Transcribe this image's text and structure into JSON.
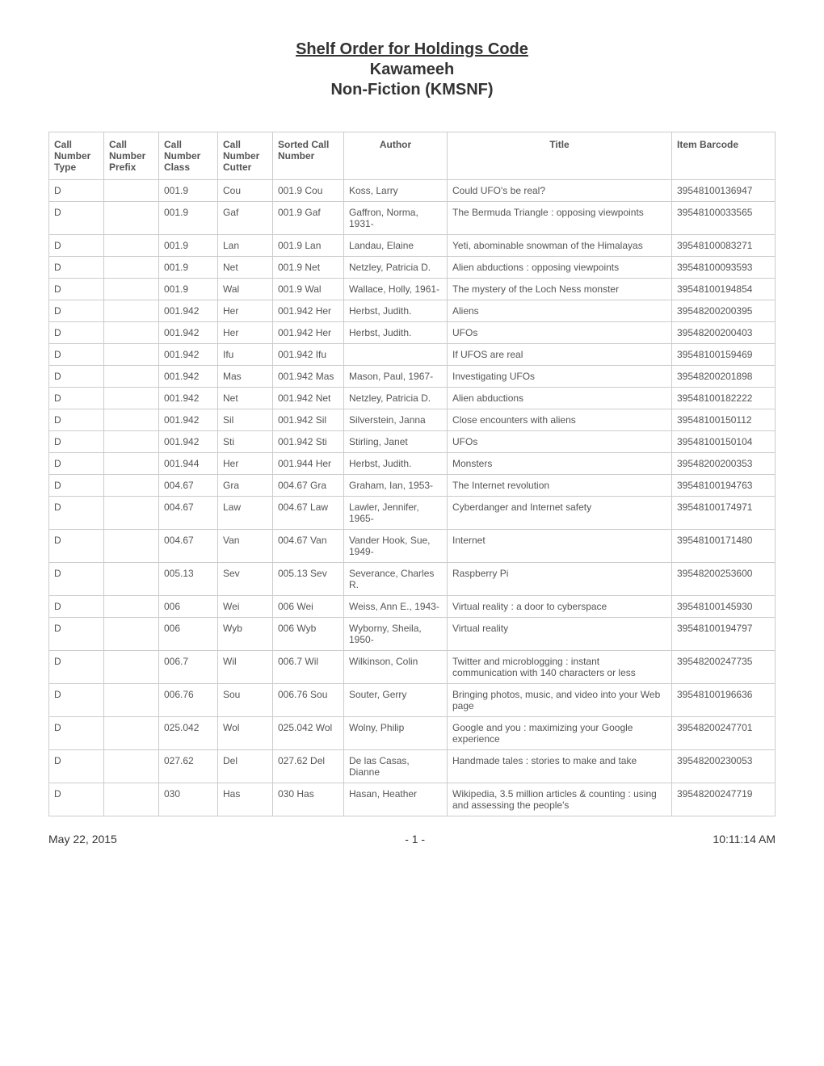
{
  "header": {
    "title": "Shelf Order for Holdings Code",
    "sub1": "Kawameeh",
    "sub2": "Non-Fiction (KMSNF)"
  },
  "columns": [
    "Call Number Type",
    "Call Number Prefix",
    "Call Number Class",
    "Call Number Cutter",
    "Sorted Call Number",
    "Author",
    "Title",
    "Item Barcode"
  ],
  "rows": [
    {
      "type": "D",
      "prefix": "",
      "class": "001.9",
      "cutter": "Cou",
      "sorted": "001.9 Cou",
      "author": "Koss, Larry",
      "title": "Could UFO's be real?",
      "barcode": "39548100136947"
    },
    {
      "type": "D",
      "prefix": "",
      "class": "001.9",
      "cutter": "Gaf",
      "sorted": "001.9 Gaf",
      "author": "Gaffron, Norma, 1931-",
      "title": "The Bermuda Triangle : opposing viewpoints",
      "barcode": "39548100033565"
    },
    {
      "type": "D",
      "prefix": "",
      "class": "001.9",
      "cutter": "Lan",
      "sorted": "001.9 Lan",
      "author": "Landau, Elaine",
      "title": "Yeti, abominable snowman of the Himalayas",
      "barcode": "39548100083271"
    },
    {
      "type": "D",
      "prefix": "",
      "class": "001.9",
      "cutter": "Net",
      "sorted": "001.9 Net",
      "author": "Netzley, Patricia D.",
      "title": "Alien abductions : opposing viewpoints",
      "barcode": "39548100093593"
    },
    {
      "type": "D",
      "prefix": "",
      "class": "001.9",
      "cutter": "Wal",
      "sorted": "001.9 Wal",
      "author": "Wallace, Holly, 1961-",
      "title": "The mystery of the Loch Ness monster",
      "barcode": "39548100194854"
    },
    {
      "type": "D",
      "prefix": "",
      "class": "001.942",
      "cutter": "Her",
      "sorted": "001.942 Her",
      "author": "Herbst, Judith.",
      "title": "Aliens",
      "barcode": "39548200200395"
    },
    {
      "type": "D",
      "prefix": "",
      "class": "001.942",
      "cutter": "Her",
      "sorted": "001.942 Her",
      "author": "Herbst, Judith.",
      "title": "UFOs",
      "barcode": "39548200200403"
    },
    {
      "type": "D",
      "prefix": "",
      "class": "001.942",
      "cutter": "Ifu",
      "sorted": "001.942 Ifu",
      "author": "",
      "title": "If UFOS are real",
      "barcode": "39548100159469"
    },
    {
      "type": "D",
      "prefix": "",
      "class": "001.942",
      "cutter": "Mas",
      "sorted": "001.942 Mas",
      "author": "Mason, Paul, 1967-",
      "title": "Investigating UFOs",
      "barcode": "39548200201898"
    },
    {
      "type": "D",
      "prefix": "",
      "class": "001.942",
      "cutter": "Net",
      "sorted": "001.942 Net",
      "author": "Netzley, Patricia D.",
      "title": "Alien abductions",
      "barcode": "39548100182222"
    },
    {
      "type": "D",
      "prefix": "",
      "class": "001.942",
      "cutter": "Sil",
      "sorted": "001.942 Sil",
      "author": "Silverstein, Janna",
      "title": "Close encounters with aliens",
      "barcode": "39548100150112"
    },
    {
      "type": "D",
      "prefix": "",
      "class": "001.942",
      "cutter": "Sti",
      "sorted": "001.942 Sti",
      "author": "Stirling, Janet",
      "title": "UFOs",
      "barcode": "39548100150104"
    },
    {
      "type": "D",
      "prefix": "",
      "class": "001.944",
      "cutter": "Her",
      "sorted": "001.944 Her",
      "author": "Herbst, Judith.",
      "title": "Monsters",
      "barcode": "39548200200353"
    },
    {
      "type": "D",
      "prefix": "",
      "class": "004.67",
      "cutter": "Gra",
      "sorted": "004.67 Gra",
      "author": "Graham, Ian, 1953-",
      "title": "The Internet revolution",
      "barcode": "39548100194763"
    },
    {
      "type": "D",
      "prefix": "",
      "class": "004.67",
      "cutter": "Law",
      "sorted": "004.67 Law",
      "author": "Lawler, Jennifer, 1965-",
      "title": "Cyberdanger and Internet safety",
      "barcode": "39548100174971"
    },
    {
      "type": "D",
      "prefix": "",
      "class": "004.67",
      "cutter": "Van",
      "sorted": "004.67 Van",
      "author": "Vander Hook, Sue, 1949-",
      "title": "Internet",
      "barcode": "39548100171480"
    },
    {
      "type": "D",
      "prefix": "",
      "class": "005.13",
      "cutter": "Sev",
      "sorted": "005.13 Sev",
      "author": "Severance, Charles R.",
      "title": "Raspberry Pi",
      "barcode": "39548200253600"
    },
    {
      "type": "D",
      "prefix": "",
      "class": "006",
      "cutter": "Wei",
      "sorted": "006 Wei",
      "author": "Weiss, Ann E., 1943-",
      "title": "Virtual reality : a door to cyberspace",
      "barcode": "39548100145930"
    },
    {
      "type": "D",
      "prefix": "",
      "class": "006",
      "cutter": "Wyb",
      "sorted": "006 Wyb",
      "author": "Wyborny, Sheila, 1950-",
      "title": "Virtual reality",
      "barcode": "39548100194797"
    },
    {
      "type": "D",
      "prefix": "",
      "class": "006.7",
      "cutter": "Wil",
      "sorted": "006.7 Wil",
      "author": "Wilkinson, Colin",
      "title": "Twitter and microblogging : instant communication with 140 characters or less",
      "barcode": "39548200247735"
    },
    {
      "type": "D",
      "prefix": "",
      "class": "006.76",
      "cutter": "Sou",
      "sorted": "006.76 Sou",
      "author": "Souter, Gerry",
      "title": "Bringing photos, music, and video into your Web page",
      "barcode": "39548100196636"
    },
    {
      "type": "D",
      "prefix": "",
      "class": "025.042",
      "cutter": "Wol",
      "sorted": "025.042 Wol",
      "author": "Wolny, Philip",
      "title": "Google and you : maximizing your Google experience",
      "barcode": "39548200247701"
    },
    {
      "type": "D",
      "prefix": "",
      "class": "027.62",
      "cutter": "Del",
      "sorted": "027.62 Del",
      "author": "De las Casas, Dianne",
      "title": "Handmade tales : stories to make and take",
      "barcode": "39548200230053"
    },
    {
      "type": "D",
      "prefix": "",
      "class": "030",
      "cutter": "Has",
      "sorted": "030 Has",
      "author": "Hasan, Heather",
      "title": "Wikipedia, 3.5 million articles & counting : using and assessing the people's",
      "barcode": "39548200247719"
    }
  ],
  "footer": {
    "date": "May 22, 2015",
    "page": "- 1 -",
    "time": "10:11:14 AM"
  }
}
